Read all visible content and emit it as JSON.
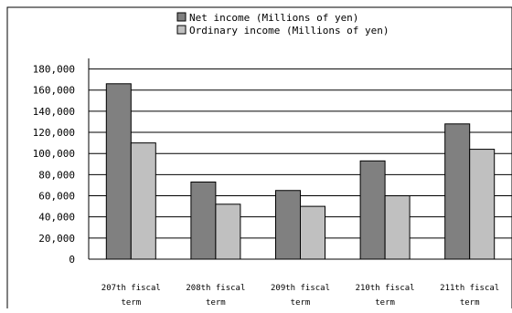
{
  "chart_data": {
    "type": "bar",
    "categories": [
      [
        "207th fiscal",
        "term"
      ],
      [
        "208th fiscal",
        "term"
      ],
      [
        "209th fiscal",
        "term"
      ],
      [
        "210th fiscal",
        "term"
      ],
      [
        "211th fiscal",
        "term"
      ]
    ],
    "series": [
      {
        "name": "Net income (Millions of yen)",
        "color": "#808080",
        "values": [
          166000,
          73000,
          65000,
          93000,
          128000
        ]
      },
      {
        "name": "Ordinary income (Millions of yen)",
        "color": "#c0c0c0",
        "values": [
          110000,
          52000,
          50000,
          60000,
          104000
        ]
      }
    ],
    "y_ticks": [
      "0",
      "20,000",
      "40,000",
      "60,000",
      "80,000",
      "100,000",
      "120,000",
      "140,000",
      "160,000",
      "180,000"
    ],
    "ylim": [
      0,
      190000
    ],
    "tick_step": 20000,
    "grid": true,
    "legend_position": "top-center"
  }
}
